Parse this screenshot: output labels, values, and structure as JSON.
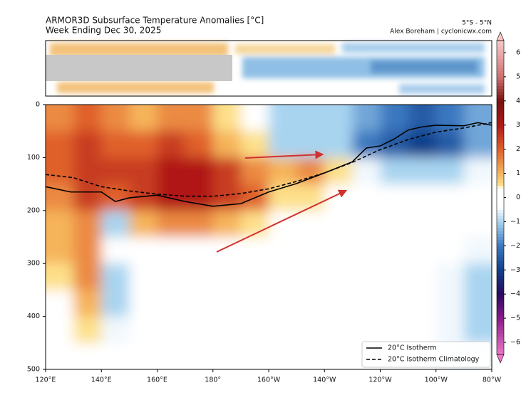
{
  "chart_data": {
    "type": "contour",
    "title": "ARMOR3D Subsurface Temperature Anomalies [°C]",
    "subtitle": "Week Ending Dec 30, 2025",
    "region": "5°S - 5°N",
    "credit": "Alex Boreham | cyclonicwx.com",
    "xlim": [
      120,
      280
    ],
    "xticks": [
      {
        "value": 120,
        "label": "120°E"
      },
      {
        "value": 140,
        "label": "140°E"
      },
      {
        "value": 160,
        "label": "160°E"
      },
      {
        "value": 180,
        "label": "180°"
      },
      {
        "value": 200,
        "label": "160°W"
      },
      {
        "value": 220,
        "label": "140°W"
      },
      {
        "value": 240,
        "label": "120°W"
      },
      {
        "value": 260,
        "label": "100°W"
      },
      {
        "value": 280,
        "label": "80°W"
      }
    ],
    "ylim": [
      0,
      500
    ],
    "y_inverted": true,
    "yticks": [
      0,
      100,
      200,
      300,
      400,
      500
    ],
    "field": {
      "x": [
        125,
        135,
        145,
        155,
        165,
        175,
        185,
        195,
        205,
        215,
        225,
        235,
        245,
        255,
        265,
        275
      ],
      "y": [
        25,
        75,
        125,
        175,
        225,
        275,
        325,
        375,
        425,
        475
      ],
      "z": [
        [
          1.5,
          2,
          1.5,
          1,
          1.5,
          1.5,
          0.5,
          0,
          -1,
          -1,
          -1,
          -1.5,
          -2,
          -2.5,
          -2,
          -1.5
        ],
        [
          2,
          2.5,
          2,
          2,
          2.5,
          2,
          1,
          0.5,
          -1,
          -1,
          -1,
          -2,
          -2.5,
          -3,
          -2.5,
          -1.5
        ],
        [
          2,
          2.5,
          2.5,
          2.5,
          3,
          3,
          2.5,
          1.5,
          1,
          1.5,
          0.5,
          -0.5,
          -1,
          -1,
          -1,
          -0.5
        ],
        [
          1.5,
          2.5,
          2,
          2.5,
          3,
          3,
          2.5,
          2,
          0.5,
          0.5,
          0,
          0,
          0,
          0,
          0,
          0
        ],
        [
          1,
          1.5,
          -1,
          1,
          1.5,
          1.5,
          1,
          0.5,
          0,
          0,
          0,
          0,
          0,
          0,
          0,
          0
        ],
        [
          1,
          1.5,
          0,
          0,
          0,
          0,
          0,
          0,
          0,
          0,
          0,
          0,
          0,
          0,
          0,
          -0.5
        ],
        [
          0.5,
          1.5,
          -1,
          0,
          0,
          0,
          0,
          0,
          0,
          0,
          0,
          0,
          0,
          0,
          -0.5,
          -1
        ],
        [
          0,
          1,
          -1,
          0,
          0,
          0,
          0,
          0,
          0,
          0,
          0,
          0,
          0,
          0,
          -0.5,
          -1
        ],
        [
          0,
          0.5,
          -0.5,
          0,
          0,
          0,
          0,
          0,
          0,
          0,
          0,
          0,
          0,
          0,
          -0.5,
          -1
        ],
        [
          0,
          0,
          0,
          0,
          0,
          0,
          0,
          0,
          0,
          0,
          0,
          0,
          0,
          0,
          -0.5,
          -0.5
        ]
      ]
    },
    "series": [
      {
        "name": "20°C Isotherm",
        "color": "#000000",
        "dash": false,
        "x": [
          120,
          129,
          140,
          145,
          150,
          160,
          170,
          180,
          190,
          200,
          210,
          220,
          230,
          235,
          240,
          245,
          250,
          255,
          260,
          270,
          275,
          280
        ],
        "values": [
          155,
          165,
          165,
          183,
          176,
          171,
          183,
          192,
          187,
          165,
          149,
          129,
          108,
          82,
          78,
          65,
          48,
          42,
          39,
          40,
          34,
          39
        ]
      },
      {
        "name": "20°C Isotherm Climatology",
        "color": "#000000",
        "dash": true,
        "x": [
          120,
          130,
          140,
          150,
          160,
          170,
          180,
          190,
          200,
          210,
          220,
          230,
          240,
          250,
          260,
          270,
          280
        ],
        "values": [
          132,
          138,
          155,
          163,
          169,
          173,
          173,
          168,
          159,
          145,
          129,
          109,
          85,
          66,
          52,
          44,
          34
        ]
      }
    ],
    "legend": "lower right",
    "clim": [
      -6.5,
      6.5
    ],
    "colorbar_ticks": [
      6,
      5,
      4,
      3,
      2,
      1,
      0,
      {
        "value": -1,
        "label": "−1"
      },
      {
        "value": -2,
        "label": "−2"
      },
      {
        "value": -3,
        "label": "−3"
      },
      {
        "value": -4,
        "label": "−4"
      },
      {
        "value": -5,
        "label": "−5"
      },
      {
        "value": -6,
        "label": "−6"
      }
    ],
    "colorscale": [
      [
        -6.5,
        "#f078c8"
      ],
      [
        -5,
        "#8a1a8a"
      ],
      [
        -4,
        "#2a0a60"
      ],
      [
        -3,
        "#10408a"
      ],
      [
        -2,
        "#3a78c0"
      ],
      [
        -1,
        "#a8d4f0"
      ],
      [
        -0.4,
        "#ffffff"
      ],
      [
        0.4,
        "#ffffff"
      ],
      [
        0.5,
        "#fde08a"
      ],
      [
        1,
        "#f6b45a"
      ],
      [
        2,
        "#e0602a"
      ],
      [
        3,
        "#b01818"
      ],
      [
        4,
        "#7a1010"
      ],
      [
        5,
        "#d07070"
      ],
      [
        6.5,
        "#f8c8c8"
      ]
    ]
  }
}
